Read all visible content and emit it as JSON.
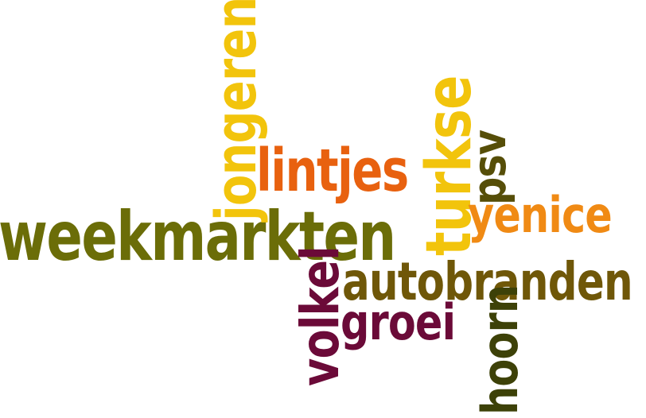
{
  "word_cloud": {
    "words": [
      {
        "id": "weekmarkten",
        "text": "weekmarkten",
        "color": "#6b6d08"
      },
      {
        "id": "jongeren",
        "text": "jongeren",
        "color": "#f2c40c"
      },
      {
        "id": "lintjes",
        "text": "lintjes",
        "color": "#e8610f"
      },
      {
        "id": "turkse",
        "text": "turkse",
        "color": "#f2c40c"
      },
      {
        "id": "psv",
        "text": "psv",
        "color": "#564e08"
      },
      {
        "id": "yenice",
        "text": "yenice",
        "color": "#f08a14"
      },
      {
        "id": "autobranden",
        "text": "autobranden",
        "color": "#6f5708"
      },
      {
        "id": "volkel",
        "text": "volkel",
        "color": "#6b0a38"
      },
      {
        "id": "groei",
        "text": "groei",
        "color": "#6b0a38"
      },
      {
        "id": "hoorn",
        "text": "hoorn",
        "color": "#3d4108"
      }
    ]
  }
}
